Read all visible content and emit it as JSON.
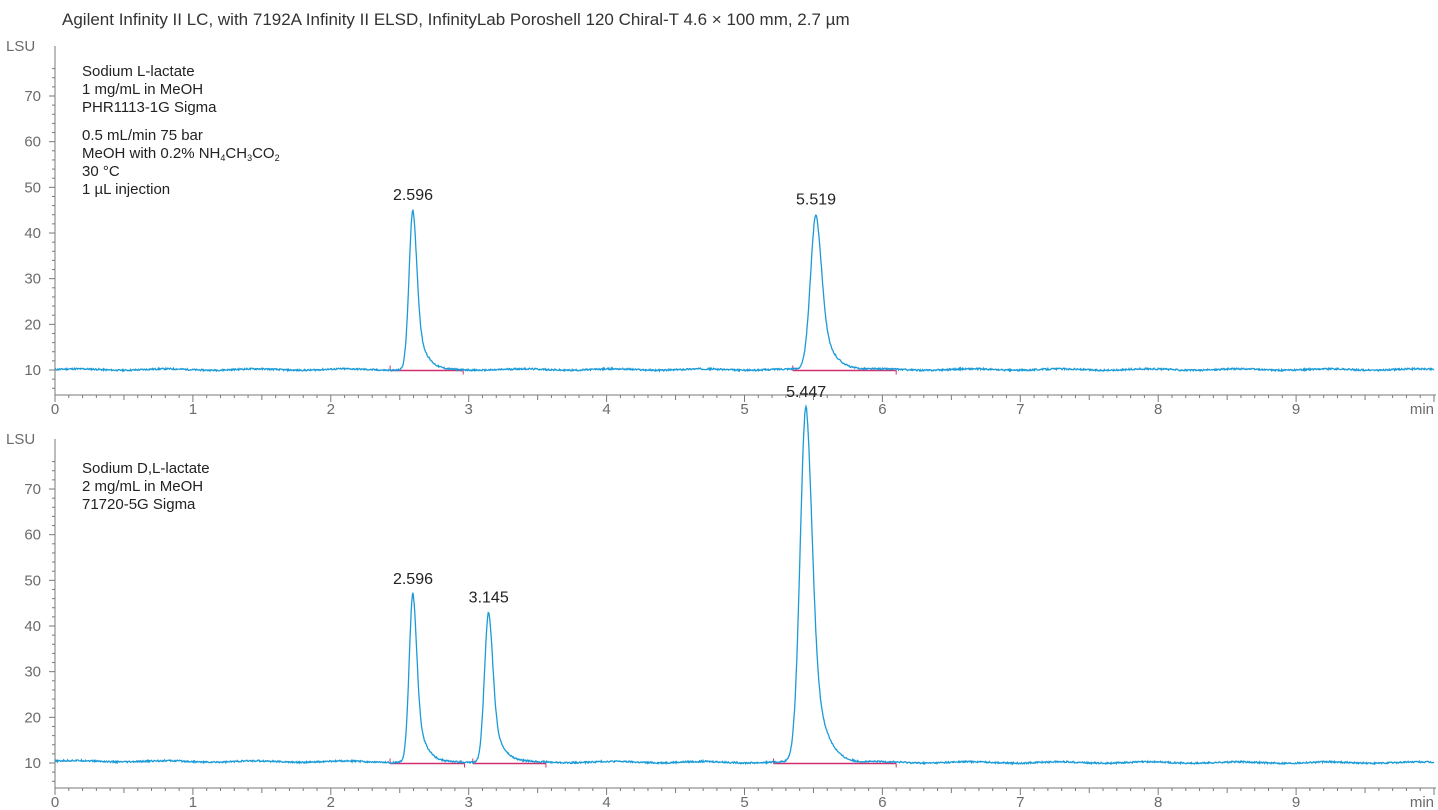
{
  "title": "Agilent Infinity II LC, with 7192A Infinity II ELSD, InfinityLab Poroshell 120 Chiral-T 4.6 × 100 mm, 2.7 µm",
  "colors": {
    "trace": "#1a9bd7",
    "baseline": "#d0306e",
    "axis": "#7a7a7a"
  },
  "chart_data": [
    {
      "type": "line",
      "yunit": "LSU",
      "xunit": "min",
      "xlim": [
        0,
        10
      ],
      "ylim": [
        5,
        78
      ],
      "xticks": [
        0,
        1,
        2,
        3,
        4,
        5,
        6,
        7,
        8,
        9
      ],
      "yticks": [
        10,
        20,
        30,
        40,
        50,
        60,
        70
      ],
      "baseline": 10,
      "sample": {
        "name": "Sodium L-lactate",
        "concentration": "1 mg/mL in MeOH",
        "product": "PHR1113-1G Sigma"
      },
      "conditions": {
        "flow": "0.5 mL/min 75 bar",
        "mobile_prefix": "MeOH with 0.2% NH",
        "mobile_s1": "4",
        "mobile_mid": "CH",
        "mobile_s2": "3",
        "mobile_end": "CO",
        "mobile_s3": "2",
        "temperature": "30 °C",
        "injection": "1 µL injection"
      },
      "peaks": [
        {
          "label": "2.596",
          "rt": 2.596,
          "height": 35,
          "width": 0.028,
          "tail": 0.09,
          "start": 2.43,
          "end": 2.96
        },
        {
          "label": "5.519",
          "rt": 5.519,
          "height": 34,
          "width": 0.04,
          "tail": 0.13,
          "start": 5.35,
          "end": 6.1
        }
      ]
    },
    {
      "type": "line",
      "yunit": "LSU",
      "xunit": "min",
      "xlim": [
        0,
        10
      ],
      "ylim": [
        5,
        78
      ],
      "xticks": [
        0,
        1,
        2,
        3,
        4,
        5,
        6,
        7,
        8,
        9
      ],
      "yticks": [
        10,
        20,
        30,
        40,
        50,
        60,
        70
      ],
      "baseline": 10,
      "sample": {
        "name": "Sodium D,L-lactate",
        "concentration": "2 mg/mL in MeOH",
        "product": "71720-5G Sigma"
      },
      "peaks": [
        {
          "label": "2.596",
          "rt": 2.596,
          "height": 37,
          "width": 0.027,
          "tail": 0.09,
          "start": 2.43,
          "end": 2.97
        },
        {
          "label": "3.145",
          "rt": 3.145,
          "height": 33,
          "width": 0.03,
          "tail": 0.1,
          "start": 3.03,
          "end": 3.56
        },
        {
          "label": "5.447",
          "rt": 5.447,
          "height": 78,
          "width": 0.043,
          "tail": 0.13,
          "start": 5.21,
          "end": 6.1
        }
      ]
    }
  ]
}
